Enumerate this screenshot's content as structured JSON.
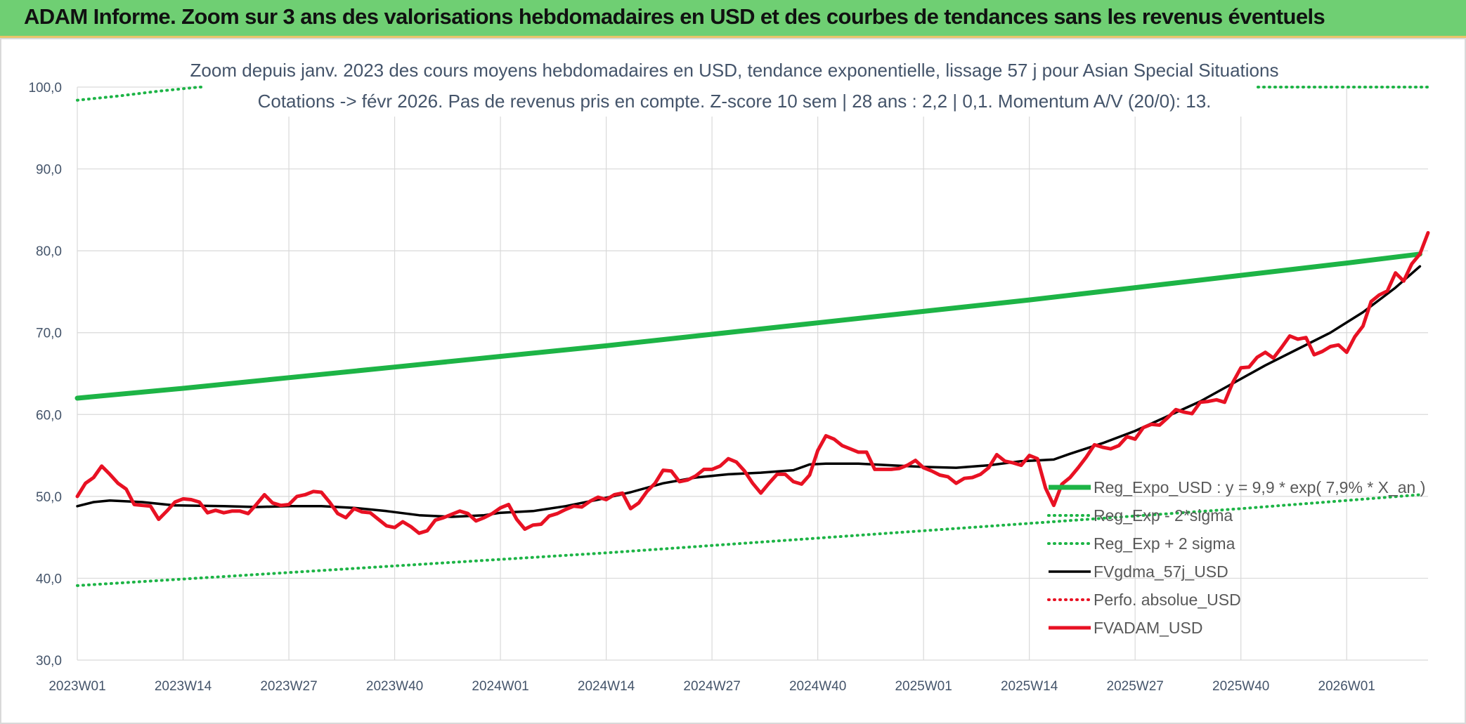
{
  "header": {
    "title": "ADAM Informe. Zoom sur 3 ans des valorisations hebdomadaires en USD et des courbes de tendances sans les revenus éventuels"
  },
  "colors": {
    "header_bg": "#6fcf73",
    "trend": "#1db446",
    "sigma": "#1db446",
    "smooth": "#000000",
    "perf": "#e81123",
    "price": "#e81123",
    "grid": "#d9d9d9",
    "axis_text": "#44546a"
  },
  "chart_data": {
    "type": "line",
    "title": "Zoom depuis janv. 2023 des cours moyens hebdomadaires en USD, tendance exponentielle, lissage 57 j pour Asian Special Situations",
    "subtitle": "Cotations -> févr 2026. Pas de revenus pris en compte. Z-score 10 sem | 28 ans : 2,2 | 0,1. Momentum A/V (20/0): 13.",
    "xlabel": "",
    "ylabel": "",
    "ylim": [
      30,
      100
    ],
    "y_ticks": [
      "30,0",
      "40,0",
      "50,0",
      "60,0",
      "70,0",
      "80,0",
      "90,0",
      "100,0"
    ],
    "x_ticks": [
      "2023W01",
      "2023W14",
      "2023W27",
      "2023W40",
      "2024W01",
      "2024W14",
      "2024W27",
      "2024W40",
      "2025W01",
      "2025W14",
      "2025W27",
      "2025W40",
      "2026W01"
    ],
    "grid": true,
    "legend_position": "right",
    "series": [
      {
        "name": "Reg_Expo_USD : y = 9,9 * exp( 7,9% *  X_an )",
        "style": "solid-thick",
        "color": "#1db446",
        "points": [
          [
            0,
            62.0
          ],
          [
            13,
            63.2
          ],
          [
            26,
            64.5
          ],
          [
            39,
            65.8
          ],
          [
            52,
            67.1
          ],
          [
            65,
            68.4
          ],
          [
            78,
            69.8
          ],
          [
            91,
            71.2
          ],
          [
            104,
            72.6
          ],
          [
            117,
            74.0
          ],
          [
            130,
            75.5
          ],
          [
            143,
            77.0
          ],
          [
            156,
            78.5
          ],
          [
            165,
            79.6
          ]
        ]
      },
      {
        "name": "Reg_Exp - 2*sigma",
        "style": "dotted",
        "color": "#1db446",
        "points": [
          [
            0,
            39.1
          ],
          [
            13,
            39.9
          ],
          [
            26,
            40.7
          ],
          [
            39,
            41.5
          ],
          [
            52,
            42.3
          ],
          [
            65,
            43.1
          ],
          [
            78,
            44.0
          ],
          [
            91,
            44.9
          ],
          [
            104,
            45.8
          ],
          [
            117,
            46.7
          ],
          [
            130,
            47.6
          ],
          [
            143,
            48.5
          ],
          [
            156,
            49.5
          ],
          [
            165,
            50.2
          ]
        ]
      },
      {
        "name": "Reg_Exp + 2 sigma",
        "style": "dotted",
        "color": "#1db446",
        "points": [
          [
            0,
            98.4
          ],
          [
            5,
            98.9
          ],
          [
            10,
            99.5
          ],
          [
            15,
            100.0
          ],
          [
            20,
            100.0
          ]
        ]
      },
      {
        "name": "FVgdma_57j_USD",
        "style": "solid",
        "color": "#000000",
        "points": [
          [
            0,
            48.8
          ],
          [
            2,
            49.3
          ],
          [
            4,
            49.5
          ],
          [
            8,
            49.3
          ],
          [
            12,
            48.9
          ],
          [
            18,
            48.8
          ],
          [
            22,
            48.7
          ],
          [
            26,
            48.8
          ],
          [
            30,
            48.8
          ],
          [
            34,
            48.6
          ],
          [
            38,
            48.2
          ],
          [
            42,
            47.7
          ],
          [
            46,
            47.5
          ],
          [
            50,
            47.7
          ],
          [
            52,
            48.0
          ],
          [
            56,
            48.2
          ],
          [
            60,
            48.8
          ],
          [
            64,
            49.6
          ],
          [
            68,
            50.5
          ],
          [
            72,
            51.6
          ],
          [
            76,
            52.3
          ],
          [
            80,
            52.7
          ],
          [
            84,
            52.9
          ],
          [
            88,
            53.2
          ],
          [
            90,
            53.9
          ],
          [
            92,
            54.0
          ],
          [
            96,
            54.0
          ],
          [
            100,
            53.8
          ],
          [
            104,
            53.6
          ],
          [
            108,
            53.5
          ],
          [
            112,
            53.8
          ],
          [
            116,
            54.3
          ],
          [
            118,
            54.4
          ],
          [
            120,
            54.5
          ],
          [
            122,
            55.2
          ],
          [
            126,
            56.5
          ],
          [
            130,
            58.0
          ],
          [
            134,
            59.8
          ],
          [
            138,
            61.6
          ],
          [
            142,
            63.8
          ],
          [
            146,
            66.0
          ],
          [
            150,
            68.0
          ],
          [
            154,
            70.0
          ],
          [
            158,
            72.5
          ],
          [
            162,
            75.5
          ],
          [
            165,
            78.1
          ]
        ]
      },
      {
        "name": "Perfo. absolue_USD",
        "style": "dotted",
        "color": "#e81123",
        "points": []
      },
      {
        "name": "FVADAM_USD",
        "style": "solid-thick",
        "color": "#e81123",
        "points": [
          [
            0,
            50.0
          ],
          [
            1,
            51.6
          ],
          [
            2,
            52.3
          ],
          [
            3,
            53.7
          ],
          [
            4,
            52.7
          ],
          [
            5,
            51.6
          ],
          [
            6,
            50.9
          ],
          [
            7,
            49.0
          ],
          [
            8,
            48.9
          ],
          [
            9,
            48.8
          ],
          [
            10,
            47.2
          ],
          [
            11,
            48.2
          ],
          [
            12,
            49.3
          ],
          [
            13,
            49.7
          ],
          [
            14,
            49.6
          ],
          [
            15,
            49.3
          ],
          [
            16,
            48.0
          ],
          [
            17,
            48.3
          ],
          [
            18,
            48.0
          ],
          [
            19,
            48.2
          ],
          [
            20,
            48.2
          ],
          [
            21,
            47.9
          ],
          [
            22,
            49.0
          ],
          [
            23,
            50.2
          ],
          [
            24,
            49.2
          ],
          [
            25,
            48.9
          ],
          [
            26,
            49.0
          ],
          [
            27,
            50.0
          ],
          [
            28,
            50.2
          ],
          [
            29,
            50.6
          ],
          [
            30,
            50.5
          ],
          [
            31,
            49.3
          ],
          [
            32,
            47.9
          ],
          [
            33,
            47.4
          ],
          [
            34,
            48.5
          ],
          [
            35,
            48.1
          ],
          [
            36,
            48.0
          ],
          [
            37,
            47.2
          ],
          [
            38,
            46.4
          ],
          [
            39,
            46.2
          ],
          [
            40,
            46.9
          ],
          [
            41,
            46.3
          ],
          [
            42,
            45.5
          ],
          [
            43,
            45.8
          ],
          [
            44,
            47.1
          ],
          [
            45,
            47.4
          ],
          [
            46,
            47.8
          ],
          [
            47,
            48.2
          ],
          [
            48,
            47.9
          ],
          [
            49,
            47.0
          ],
          [
            50,
            47.4
          ],
          [
            51,
            47.9
          ],
          [
            52,
            48.6
          ],
          [
            53,
            49.0
          ],
          [
            54,
            47.2
          ],
          [
            55,
            46.0
          ],
          [
            56,
            46.5
          ],
          [
            57,
            46.6
          ],
          [
            58,
            47.6
          ],
          [
            59,
            47.9
          ],
          [
            60,
            48.4
          ],
          [
            61,
            48.8
          ],
          [
            62,
            48.7
          ],
          [
            63,
            49.4
          ],
          [
            64,
            49.9
          ],
          [
            65,
            49.6
          ],
          [
            66,
            50.2
          ],
          [
            67,
            50.4
          ],
          [
            68,
            48.5
          ],
          [
            69,
            49.2
          ],
          [
            70,
            50.6
          ],
          [
            71,
            51.6
          ],
          [
            72,
            53.2
          ],
          [
            73,
            53.1
          ],
          [
            74,
            51.8
          ],
          [
            75,
            52.0
          ],
          [
            76,
            52.5
          ],
          [
            77,
            53.3
          ],
          [
            78,
            53.3
          ],
          [
            79,
            53.7
          ],
          [
            80,
            54.6
          ],
          [
            81,
            54.2
          ],
          [
            82,
            53.1
          ],
          [
            83,
            51.6
          ],
          [
            84,
            50.4
          ],
          [
            85,
            51.6
          ],
          [
            86,
            52.7
          ],
          [
            87,
            52.7
          ],
          [
            88,
            51.8
          ],
          [
            89,
            51.5
          ],
          [
            90,
            52.6
          ],
          [
            91,
            55.6
          ],
          [
            92,
            57.4
          ],
          [
            93,
            57.0
          ],
          [
            94,
            56.2
          ],
          [
            95,
            55.8
          ],
          [
            96,
            55.4
          ],
          [
            97,
            55.4
          ],
          [
            98,
            53.3
          ],
          [
            99,
            53.3
          ],
          [
            100,
            53.3
          ],
          [
            101,
            53.4
          ],
          [
            102,
            53.8
          ],
          [
            103,
            54.4
          ],
          [
            104,
            53.5
          ],
          [
            105,
            53.1
          ],
          [
            106,
            52.6
          ],
          [
            107,
            52.4
          ],
          [
            108,
            51.6
          ],
          [
            109,
            52.2
          ],
          [
            110,
            52.3
          ],
          [
            111,
            52.7
          ],
          [
            112,
            53.5
          ],
          [
            113,
            55.1
          ],
          [
            114,
            54.3
          ],
          [
            115,
            54.1
          ],
          [
            116,
            53.8
          ],
          [
            117,
            55.0
          ],
          [
            118,
            54.6
          ],
          [
            119,
            51.0
          ],
          [
            120,
            48.9
          ],
          [
            121,
            51.5
          ],
          [
            122,
            52.3
          ],
          [
            123,
            53.5
          ],
          [
            124,
            54.8
          ],
          [
            125,
            56.3
          ],
          [
            126,
            56.0
          ],
          [
            127,
            55.8
          ],
          [
            128,
            56.2
          ],
          [
            129,
            57.3
          ],
          [
            130,
            57.0
          ],
          [
            131,
            58.4
          ],
          [
            132,
            58.8
          ],
          [
            133,
            58.7
          ],
          [
            134,
            59.6
          ],
          [
            135,
            60.6
          ],
          [
            136,
            60.3
          ],
          [
            137,
            60.1
          ],
          [
            138,
            61.5
          ],
          [
            139,
            61.6
          ],
          [
            140,
            61.8
          ],
          [
            141,
            61.5
          ],
          [
            142,
            63.9
          ],
          [
            143,
            65.7
          ],
          [
            144,
            65.8
          ],
          [
            145,
            67.0
          ],
          [
            146,
            67.6
          ],
          [
            147,
            66.9
          ],
          [
            148,
            68.2
          ],
          [
            149,
            69.6
          ],
          [
            150,
            69.2
          ],
          [
            151,
            69.4
          ],
          [
            152,
            67.3
          ],
          [
            153,
            67.7
          ],
          [
            154,
            68.3
          ],
          [
            155,
            68.5
          ],
          [
            156,
            67.6
          ],
          [
            157,
            69.5
          ],
          [
            158,
            70.8
          ],
          [
            159,
            73.8
          ],
          [
            160,
            74.6
          ],
          [
            161,
            75.1
          ],
          [
            162,
            77.3
          ],
          [
            163,
            76.3
          ],
          [
            164,
            78.4
          ],
          [
            165,
            79.6
          ],
          [
            166,
            82.2
          ]
        ]
      }
    ]
  }
}
